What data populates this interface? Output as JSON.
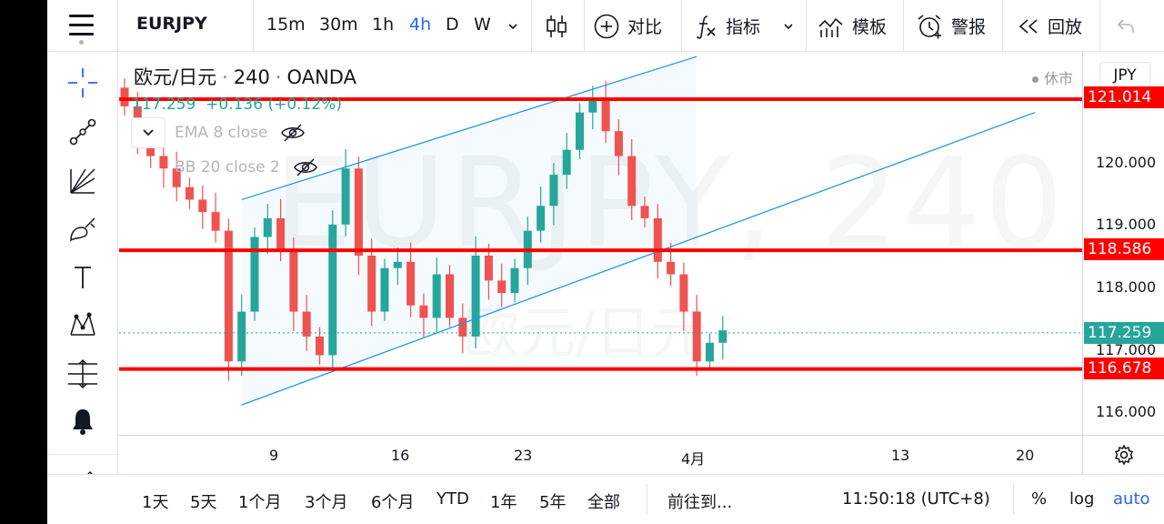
{
  "toolbar": {
    "symbol": "EURJPY",
    "intervals": [
      "15m",
      "30m",
      "1h",
      "4h",
      "D",
      "W"
    ],
    "active_interval": "4h",
    "compare_label": "对比",
    "indicators_label": "指标",
    "templates_label": "模板",
    "alert_label": "警报",
    "replay_label": "回放"
  },
  "legend": {
    "pair": "欧元/日元",
    "interval": "240",
    "source": "OANDA",
    "price": "117.259",
    "change": "+0.136 (+0.12%)",
    "indicators": [
      {
        "label": "EMA 8 close"
      },
      {
        "label": "BB 20 close 2"
      }
    ],
    "status": "休市"
  },
  "watermark": {
    "symbol_text": "EURJPY, 240",
    "name_text": "欧元/日元"
  },
  "price_scale": {
    "currency": "JPY",
    "ticks": [
      "120.000",
      "119.000",
      "118.000",
      "117.000",
      "116.000"
    ],
    "levels": [
      {
        "price": 121.014,
        "label": "121.014"
      },
      {
        "price": 118.586,
        "label": "118.586"
      },
      {
        "price": 116.678,
        "label": "116.678"
      }
    ],
    "last_price": {
      "price": 117.259,
      "label": "117.259"
    }
  },
  "time_scale": {
    "ticks": [
      "9",
      "16",
      "23",
      "4月",
      "13",
      "20"
    ]
  },
  "bottom": {
    "ranges": [
      "1天",
      "5天",
      "1个月",
      "3个月",
      "6个月",
      "YTD",
      "1年",
      "5年",
      "全部"
    ],
    "goto_label": "前往到...",
    "clock": "11:50:18 (UTC+8)",
    "percent_label": "%",
    "log_label": "log",
    "auto_label": "auto"
  },
  "colors": {
    "up": "#26a69a",
    "down": "#ef5350",
    "level_line": "#ff0000",
    "channel_line": "#2196f3",
    "accent": "#2962ff"
  },
  "chart_data": {
    "type": "candlestick",
    "title": "欧元/日元 · 240 · OANDA",
    "xlabel": "",
    "ylabel": "",
    "ylim": [
      115.7,
      121.6
    ],
    "x_ticks": [
      "9",
      "16",
      "23",
      "4月",
      "13",
      "20"
    ],
    "horizontal_levels": [
      121.014,
      118.586,
      116.678
    ],
    "last_price": 117.259,
    "closes": [
      120.9,
      120.4,
      120.1,
      119.9,
      119.6,
      119.4,
      119.2,
      118.9,
      116.8,
      117.6,
      118.8,
      119.1,
      118.6,
      117.6,
      117.2,
      116.9,
      119.0,
      119.9,
      118.5,
      117.6,
      118.3,
      118.4,
      117.7,
      117.5,
      118.2,
      117.5,
      117.2,
      118.5,
      118.1,
      117.9,
      118.3,
      118.9,
      119.3,
      119.8,
      120.2,
      120.8,
      121.0,
      120.5,
      120.1,
      119.3,
      119.1,
      118.4,
      118.2,
      117.6,
      116.8,
      117.1,
      117.3
    ],
    "channel": {
      "lower": [
        {
          "x_index": 9,
          "price": 116.1
        },
        {
          "x_index": 70,
          "price": 120.8
        }
      ],
      "upper": [
        {
          "x_index": 9,
          "price": 119.4
        },
        {
          "x_index": 44,
          "price": 121.7
        }
      ]
    }
  }
}
